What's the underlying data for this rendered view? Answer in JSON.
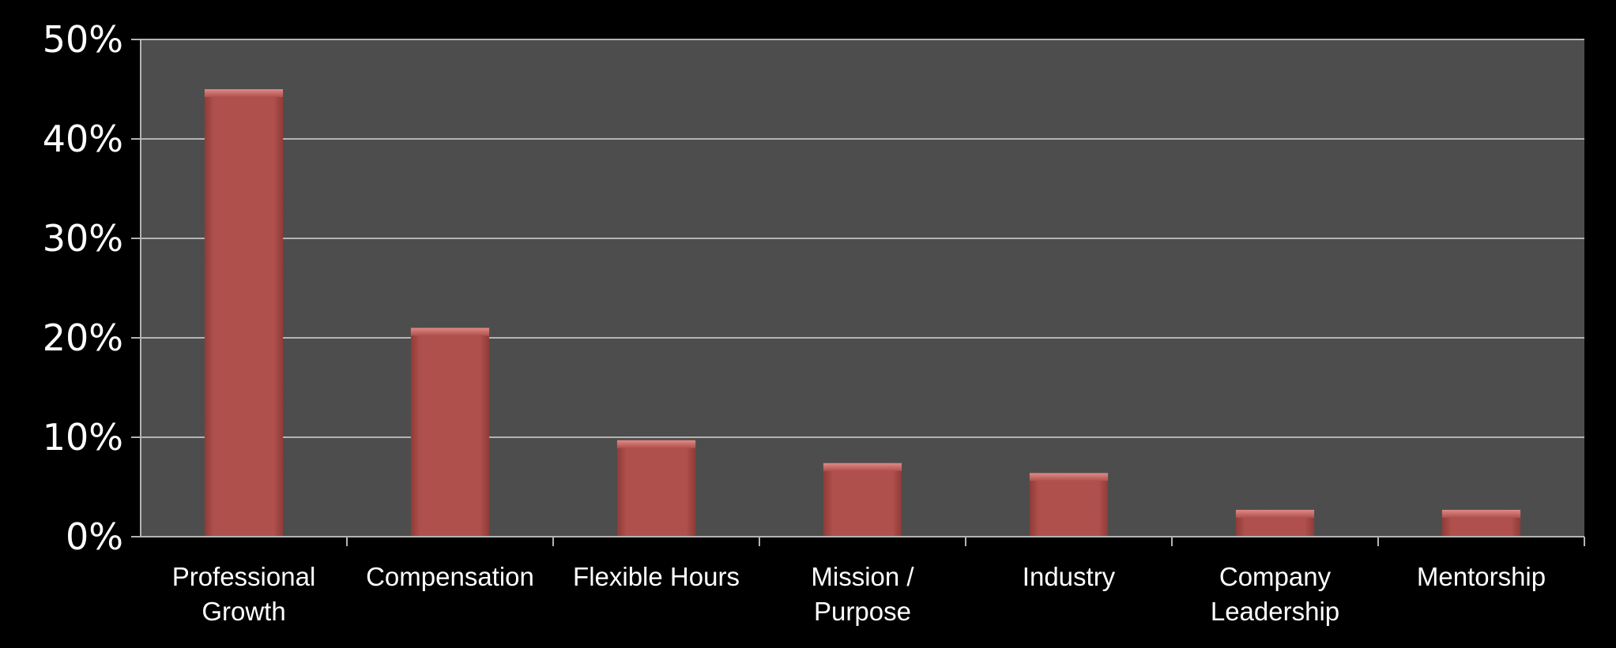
{
  "chart_data": {
    "type": "bar",
    "categories": [
      [
        "Professional",
        "Growth"
      ],
      [
        "Compensation"
      ],
      [
        "Flexible Hours"
      ],
      [
        "Mission /",
        "Purpose"
      ],
      [
        "Industry"
      ],
      [
        "Company",
        "Leadership"
      ],
      [
        "Mentorship"
      ]
    ],
    "values": [
      45,
      21,
      9.7,
      7.4,
      6.4,
      2.7,
      2.7
    ],
    "y_ticks": [
      "0%",
      "10%",
      "20%",
      "30%",
      "40%",
      "50%"
    ],
    "ylim": [
      0,
      50
    ],
    "grid": true,
    "colors": {
      "page_background": "#000000",
      "plot_background": "#4d4d4d",
      "bar": "#b0504c",
      "bar_highlight": "#e08a86",
      "grid": "#b4b4b4",
      "text": "#ffffff"
    }
  }
}
